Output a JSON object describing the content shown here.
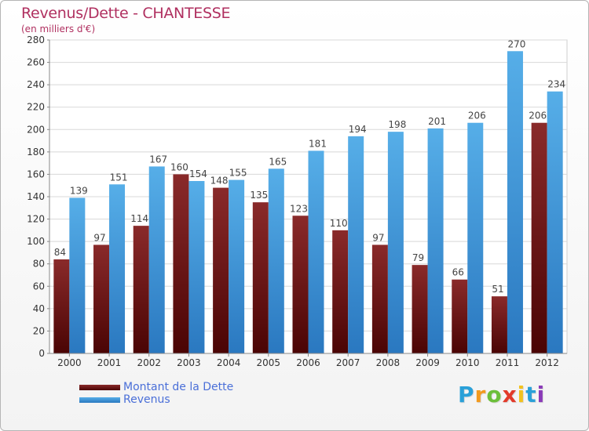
{
  "chart_data": {
    "type": "bar",
    "title": "Revenus/Dette - CHANTESSE",
    "subtitle": "(en milliers d'€)",
    "categories": [
      "2000",
      "2001",
      "2002",
      "2003",
      "2004",
      "2005",
      "2006",
      "2007",
      "2008",
      "2009",
      "2010",
      "2011",
      "2012"
    ],
    "series": [
      {
        "name": "Montant de la Dette",
        "color": "#7a1a1a",
        "values": [
          84,
          97,
          114,
          160,
          148,
          135,
          123,
          110,
          97,
          79,
          66,
          51,
          206
        ]
      },
      {
        "name": "Revenus",
        "color": "#3a8fd8",
        "values": [
          139,
          151,
          167,
          154,
          155,
          165,
          181,
          194,
          198,
          201,
          206,
          270,
          234
        ]
      }
    ],
    "ylim": [
      0,
      280
    ],
    "yticks": [
      0,
      20,
      40,
      60,
      80,
      100,
      120,
      140,
      160,
      180,
      200,
      220,
      240,
      260,
      280
    ],
    "grid": true,
    "legend": "bottom-left"
  },
  "logo": {
    "letters": [
      "P",
      "r",
      "o",
      "x",
      "i",
      "t",
      "i"
    ],
    "colors": [
      "#2aa0d8",
      "#f29a1e",
      "#6cbf3a",
      "#e23a2a",
      "#f2c21e",
      "#2aa0d8",
      "#8a3ab8"
    ]
  }
}
